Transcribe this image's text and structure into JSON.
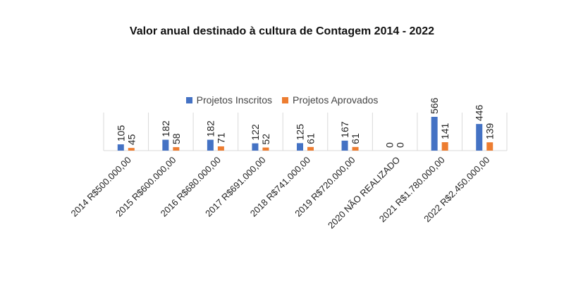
{
  "colors": {
    "inscritos": "#4472C4",
    "aprovados": "#ED7D31",
    "grid": "#d9d9d9"
  },
  "chart_data": {
    "type": "bar",
    "title": "Valor anual destinado à cultura de Contagem 2014 - 2022",
    "xlabel": "",
    "ylabel": "",
    "legend": "top",
    "grid": true,
    "categories": [
      "2014 R$500.000,00",
      "2015 R$600.000,00",
      "2016 R$680.000,00",
      "2017 R$691.000,00",
      "2018 R$741.000,00",
      "2019 R$720.000,00",
      "2020 NÃO REALIZADO",
      "2021 R$1.780.000,00",
      "2022 R$2.450.000,00"
    ],
    "series": [
      {
        "name": "Projetos Inscritos",
        "values": [
          105,
          182,
          182,
          122,
          125,
          167,
          0,
          566,
          446
        ]
      },
      {
        "name": "Projetos Aprovados",
        "values": [
          45,
          58,
          71,
          52,
          61,
          61,
          0,
          141,
          139
        ]
      }
    ],
    "ylim": [
      0,
      600
    ]
  }
}
